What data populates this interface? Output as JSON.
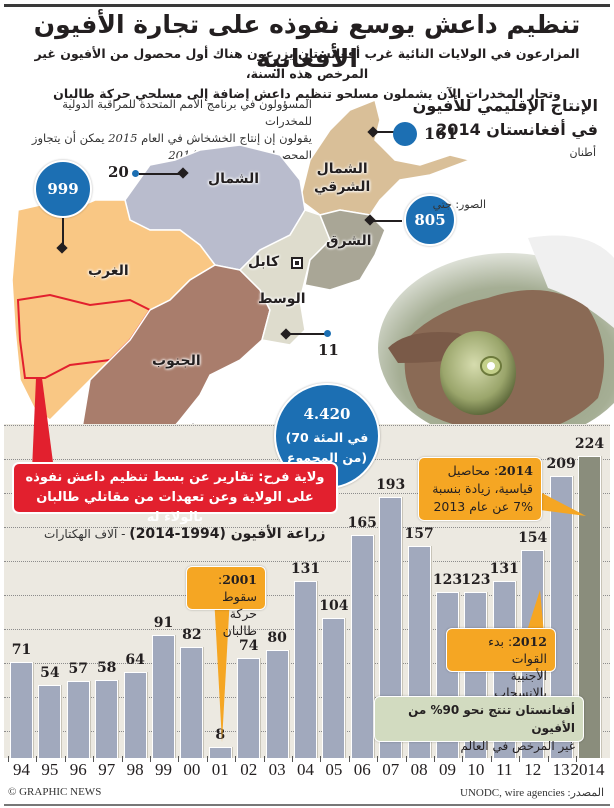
{
  "header": {
    "title": "تنظيم داعش يوسع نفوذه على تجارة الأفيون الأفغانية",
    "subtitle_line1": "المزارعون في الولايات النائية غرب أفغانستان يزرعون هناك أول محصول من الأفيون غير المرخص هذه السنة،",
    "subtitle_line2": "وتجار المخدرات الآن يشملون مسلحو تنظيم داعش إضافة إلى مسلحي حركة طالبان"
  },
  "map": {
    "title_line1": "الإنتاج الإقليمي للأفيون",
    "title_line2": "في أفغانستان 2014",
    "unit": "أطنان",
    "note_line1": "المسؤولون في برنامج الأمم المتحدة للمراقبة الدولية للمخدرات",
    "note_line2_pre": "يقولون إن إنتاج الخشخاش في العام",
    "note_line2_year": "2015",
    "note_line2_post": "يمكن أن يتجاوز",
    "note_line3_pre": "المحصول القياسي لعام",
    "note_line3_year": "2014",
    "regions": [
      {
        "name": "الشمال الشرقي",
        "line1": "الشمال",
        "line2": "الشرقي",
        "value": "161",
        "color": "#d9bf98"
      },
      {
        "name": "الشمال",
        "value": "20",
        "color": "#b9bccd"
      },
      {
        "name": "الغرب",
        "value": "999",
        "color": "#f9c784"
      },
      {
        "name": "الشرق",
        "value": "805",
        "color": "#a9a696"
      },
      {
        "name": "الوسط",
        "value": "11",
        "color": "#dedccd"
      },
      {
        "name": "الجنوب",
        "value": "4.420",
        "value_note_line1": "(70 في المئة",
        "value_note_line2": "من المجموع)",
        "color": "#a97d6c"
      }
    ],
    "capital": "كابل",
    "farah_callout_line1": "ولاية فرح: تقارير عن بسط تنظيم داعش نفوذه",
    "farah_callout_line2": "على الولاية وعن تعهدات من مقاتلي طالبان بالولاء له"
  },
  "chart_data": {
    "type": "bar",
    "title": "زراعة الأفيون (1994-2014)",
    "ylabel": "آلاف الهكتارات",
    "xlabel": "",
    "categories": [
      "94",
      "95",
      "96",
      "97",
      "98",
      "99",
      "00",
      "01",
      "02",
      "03",
      "04",
      "05",
      "06",
      "07",
      "08",
      "09",
      "10",
      "11",
      "12",
      "13",
      "2014"
    ],
    "values": [
      71,
      54,
      57,
      58,
      64,
      91,
      82,
      8,
      74,
      80,
      131,
      104,
      165,
      193,
      157,
      123,
      123,
      131,
      154,
      209,
      224
    ],
    "value_labels": [
      "71",
      "54",
      "57",
      "58",
      "64",
      "91",
      "82",
      "8",
      "74",
      "80",
      "131",
      "104",
      "165",
      "193",
      "157",
      "123",
      "123",
      "131",
      "154",
      "209",
      "224"
    ],
    "highlight_index": 20,
    "ylim": [
      0,
      240
    ],
    "grid": true,
    "bar_color": "#a1a9bd",
    "highlight_color": "#8a8d7c",
    "annotations": [
      {
        "year": "2001",
        "label": "سقوط",
        "text_line2": "حركة طالبان"
      },
      {
        "year": "2012",
        "label": "بدء القوات",
        "text_line2": "الأجنبية بالانسحاب"
      },
      {
        "year": "2014",
        "label": "محاصيل",
        "text_line2": "قياسية، زيادة بنسبة",
        "text_line3": "7% عن عام 2013"
      }
    ],
    "note_line1": "أفغانستان تنتج نحو 90% من الأفيون",
    "note_line2": "غير المرخص في العالم"
  },
  "footer": {
    "copyright": "© GRAPHIC NEWS",
    "photo_credit": "الصور: جتي",
    "source": "المصدر: UNODC, wire agencies"
  },
  "colors": {
    "bubble_blue": "#1c6fb3",
    "callout_orange": "#f5a623",
    "callout_red": "#e2202e",
    "callout_green": "#d2dbc0",
    "chart_bg": "#ece9e1"
  }
}
